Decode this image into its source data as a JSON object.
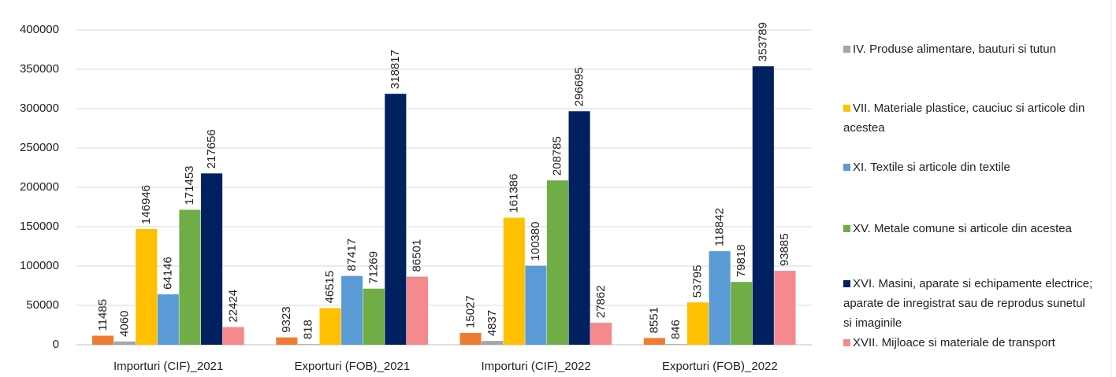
{
  "chart_data": {
    "type": "bar",
    "categories": [
      "Importuri (CIF)_2021",
      "Exporturi (FOB)_2021",
      "Importuri (CIF)_2022",
      "Exporturi (FOB)_2022"
    ],
    "series": [
      {
        "color": "#ed7d31",
        "values": [
          11485,
          9323,
          15027,
          8551
        ]
      },
      {
        "name": "IV. Produse alimentare, bauturi si tutun",
        "color": "#a5a5a5",
        "values": [
          4060,
          818,
          4837,
          846
        ]
      },
      {
        "name": "VII. Materiale plastice, cauciuc si articole din acestea",
        "color": "#ffc000",
        "values": [
          146946,
          46515,
          161386,
          53795
        ]
      },
      {
        "name": "XI. Textile si articole din textile",
        "color": "#5b9bd5",
        "values": [
          64146,
          87417,
          100380,
          118842
        ]
      },
      {
        "name": "XV. Metale comune si articole din acestea",
        "color": "#70ad47",
        "values": [
          171453,
          71269,
          208785,
          79818
        ]
      },
      {
        "name": "XVI. Masini, aparate si echipamente electrice; aparate de inregistrat sau de reprodus sunetul si imaginile",
        "color": "#002060",
        "values": [
          217656,
          318817,
          296695,
          353789
        ]
      },
      {
        "name": "XVII. Mijloace si materiale de transport",
        "color": "#f4898e",
        "values": [
          22424,
          86501,
          27862,
          93885
        ]
      }
    ],
    "ylim": [
      0,
      400000
    ],
    "yticks": [
      0,
      50000,
      100000,
      150000,
      200000,
      250000,
      300000,
      350000,
      400000
    ],
    "grid": true,
    "legend": "right",
    "value_labels_rotated": true
  }
}
